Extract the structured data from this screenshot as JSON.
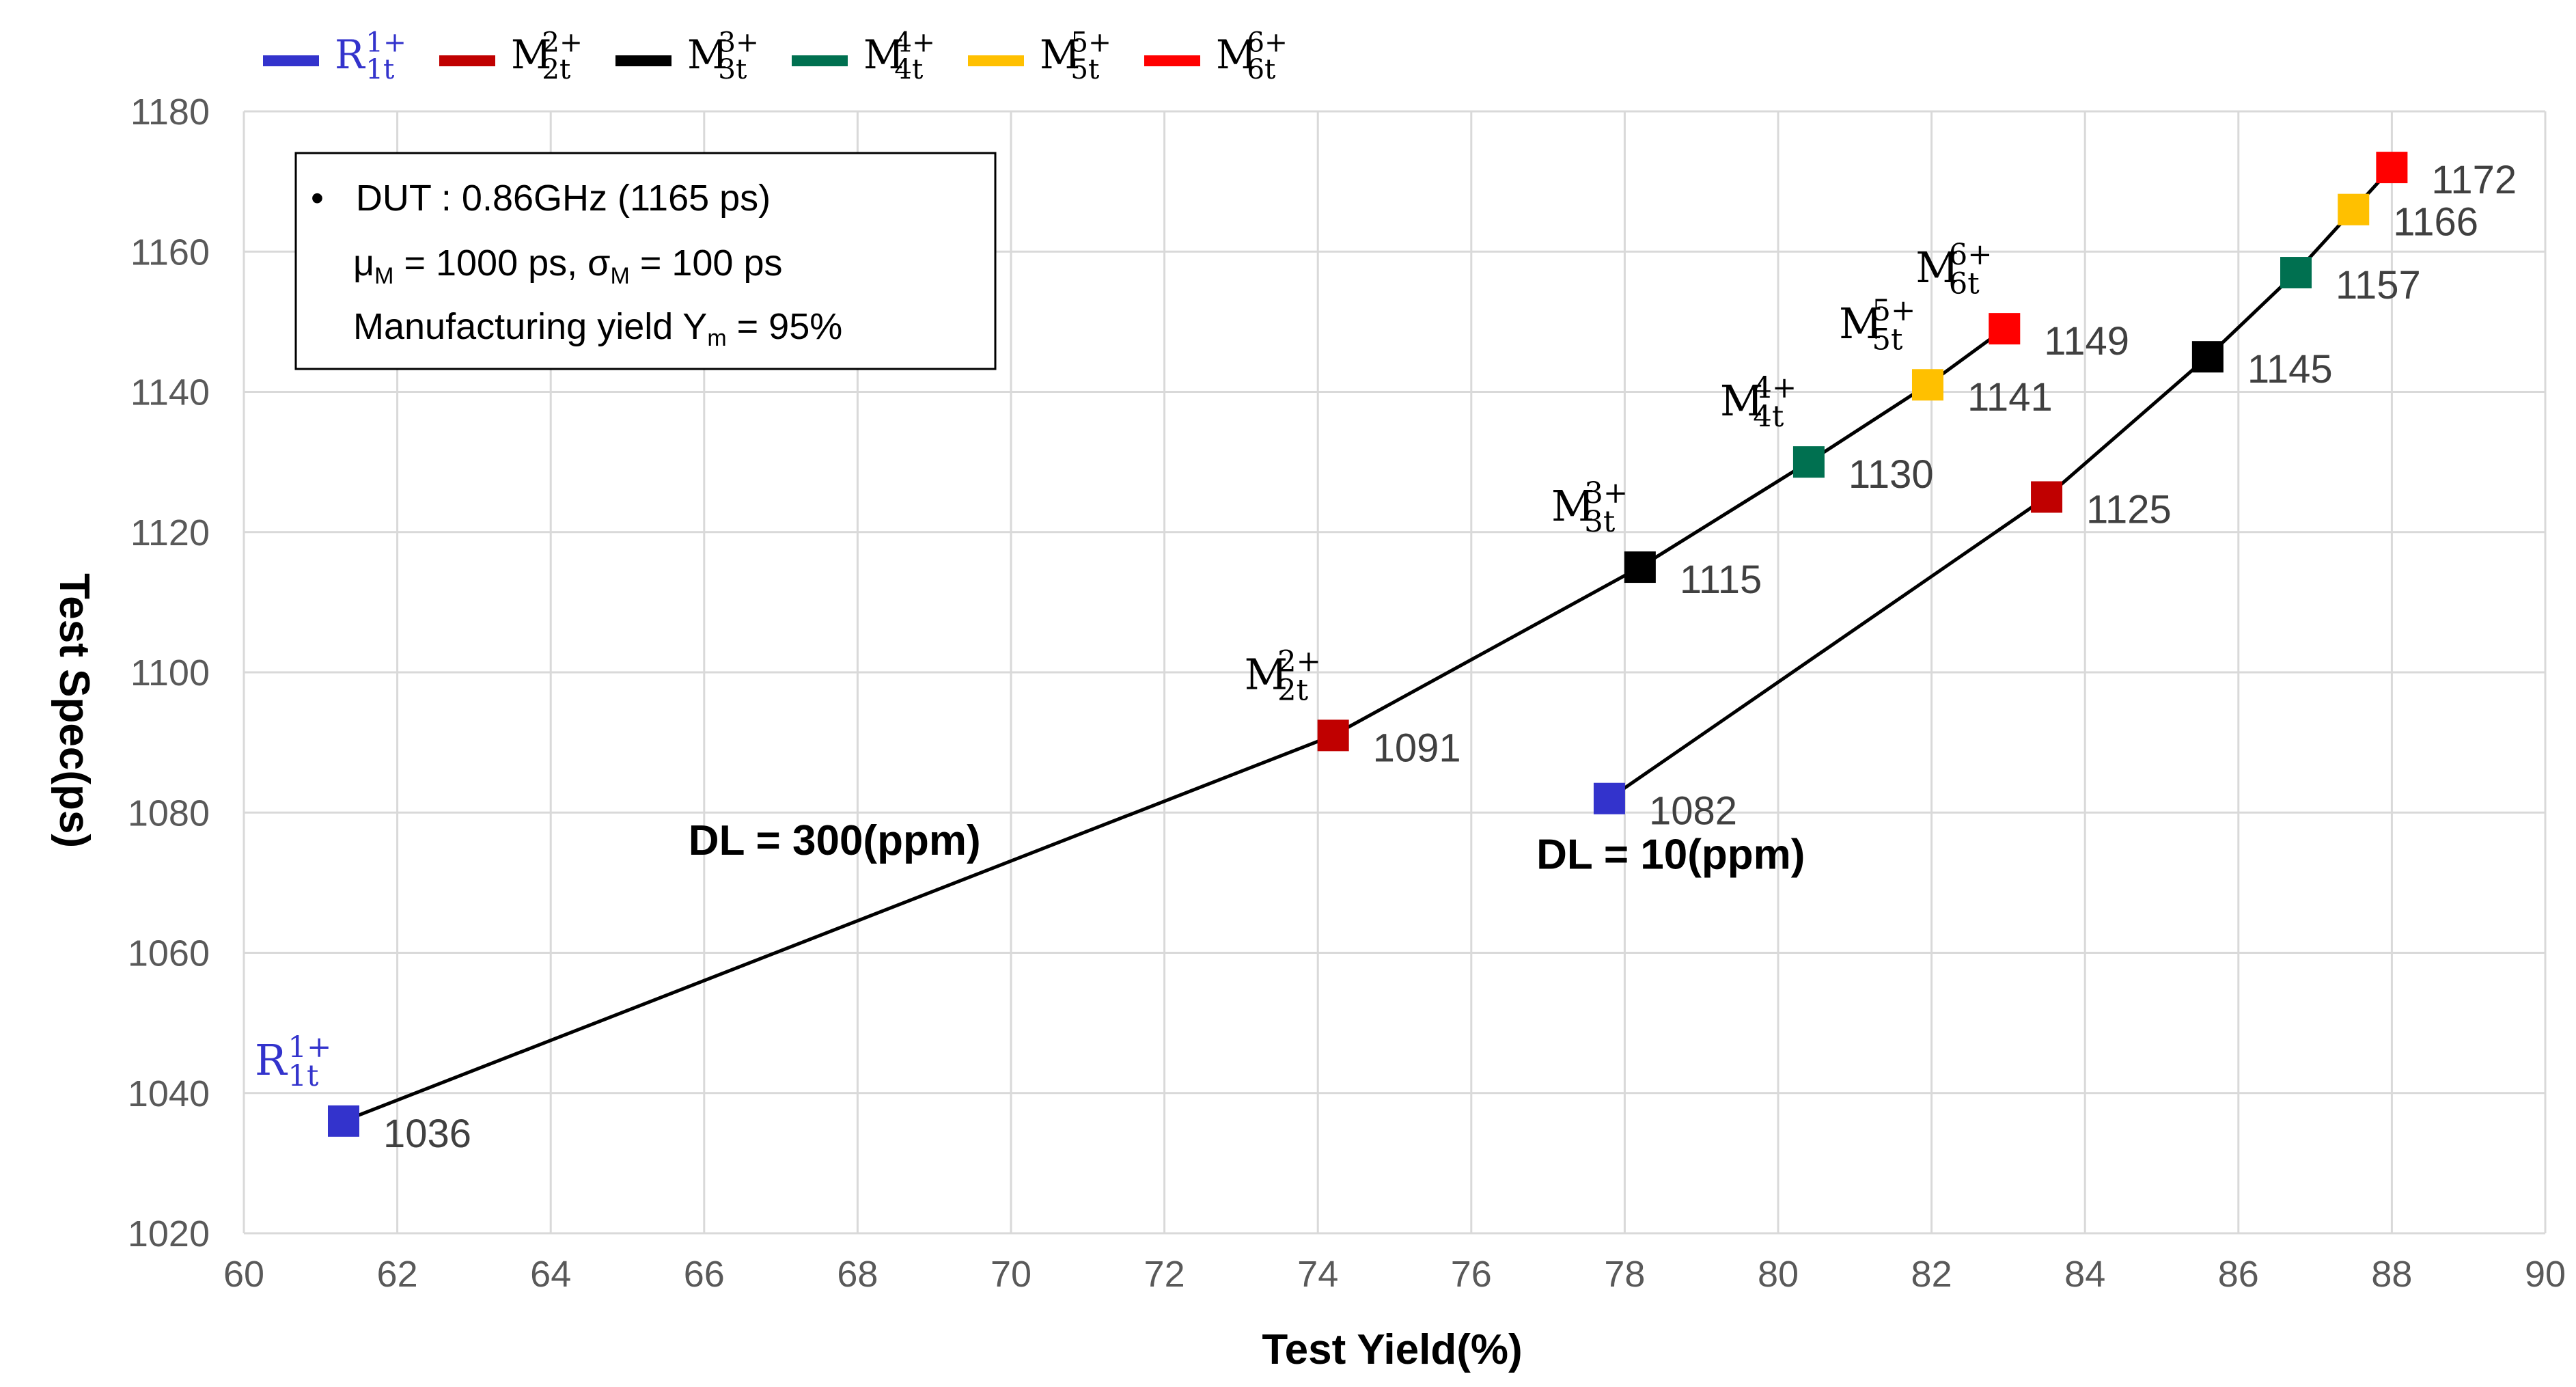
{
  "chart_data": {
    "type": "scatter",
    "title": "",
    "xlabel": "Test Yield(%)",
    "ylabel": "Test Spec(ps)",
    "xlim": [
      60,
      90
    ],
    "ylim": [
      1020,
      1180
    ],
    "xticks": [
      60,
      62,
      64,
      66,
      68,
      70,
      72,
      74,
      76,
      78,
      80,
      82,
      84,
      86,
      88,
      90
    ],
    "yticks": [
      1020,
      1040,
      1060,
      1080,
      1100,
      1120,
      1140,
      1160,
      1180
    ],
    "grid": true,
    "legend_position": "top-left",
    "legend": [
      {
        "base": "R",
        "sup": "1+",
        "sub": "1t",
        "color": "#3333cc"
      },
      {
        "base": "M",
        "sup": "2+",
        "sub": "2t",
        "color": "#c00000"
      },
      {
        "base": "M",
        "sup": "3+",
        "sub": "3t",
        "color": "#000000"
      },
      {
        "base": "M",
        "sup": "4+",
        "sub": "4t",
        "color": "#007050"
      },
      {
        "base": "M",
        "sup": "5+",
        "sub": "5t",
        "color": "#ffc000"
      },
      {
        "base": "M",
        "sup": "6+",
        "sub": "6t",
        "color": "#ff0000"
      }
    ],
    "series": [
      {
        "name": "DL = 300(ppm)",
        "points": [
          {
            "x": 61.3,
            "y": 1036,
            "label": "1036",
            "marker": 0
          },
          {
            "x": 74.2,
            "y": 1091,
            "label": "1091",
            "marker": 1
          },
          {
            "x": 78.2,
            "y": 1115,
            "label": "1115",
            "marker": 2
          },
          {
            "x": 80.4,
            "y": 1130,
            "label": "1130",
            "marker": 3
          },
          {
            "x": 81.95,
            "y": 1141,
            "label": "1141",
            "marker": 4
          },
          {
            "x": 82.95,
            "y": 1149,
            "label": "1149",
            "marker": 5
          }
        ]
      },
      {
        "name": "DL = 10(ppm)",
        "points": [
          {
            "x": 77.8,
            "y": 1082,
            "label": "1082",
            "marker": 0
          },
          {
            "x": 83.5,
            "y": 1125,
            "label": "1125",
            "marker": 1
          },
          {
            "x": 85.6,
            "y": 1145,
            "label": "1145",
            "marker": 2
          },
          {
            "x": 86.75,
            "y": 1157,
            "label": "1157",
            "marker": 3
          },
          {
            "x": 87.5,
            "y": 1166,
            "label": "1166",
            "marker": 4
          },
          {
            "x": 88.0,
            "y": 1172,
            "label": "1172",
            "marker": 5
          }
        ]
      }
    ],
    "annotations": [
      {
        "text": "DL = 300(ppm)",
        "x": 67.7,
        "y": 1074,
        "series": 0
      },
      {
        "text": "DL = 10(ppm)",
        "x": 78.6,
        "y": 1072,
        "series": 1
      }
    ],
    "point_tags": [
      {
        "base": "R",
        "sup": "1+",
        "sub": "1t",
        "series": 0,
        "point": 0,
        "color": "#3333cc"
      },
      {
        "base": "M",
        "sup": "2+",
        "sub": "2t",
        "series": 0,
        "point": 1,
        "color": "#000000"
      },
      {
        "base": "M",
        "sup": "3+",
        "sub": "3t",
        "series": 0,
        "point": 2,
        "color": "#000000"
      },
      {
        "base": "M",
        "sup": "4+",
        "sub": "4t",
        "series": 0,
        "point": 3,
        "color": "#000000"
      },
      {
        "base": "M",
        "sup": "5+",
        "sub": "5t",
        "series": 0,
        "point": 4,
        "color": "#000000"
      },
      {
        "base": "M",
        "sup": "6+",
        "sub": "6t",
        "series": 0,
        "point": 5,
        "color": "#000000"
      }
    ]
  },
  "info_box": {
    "bullet": "•",
    "line1": "DUT : 0.86GHz (1165 ps)",
    "mu_symbol": "μ",
    "mu_sub": "M",
    "mu_value": " = 1000 ps, ",
    "sigma_symbol": "σ",
    "sigma_sub": "M",
    "sigma_value": " = 100 ps",
    "line3_prefix": "Manufacturing yield Y",
    "line3_sub": "m",
    "line3_suffix": " = 95%"
  }
}
